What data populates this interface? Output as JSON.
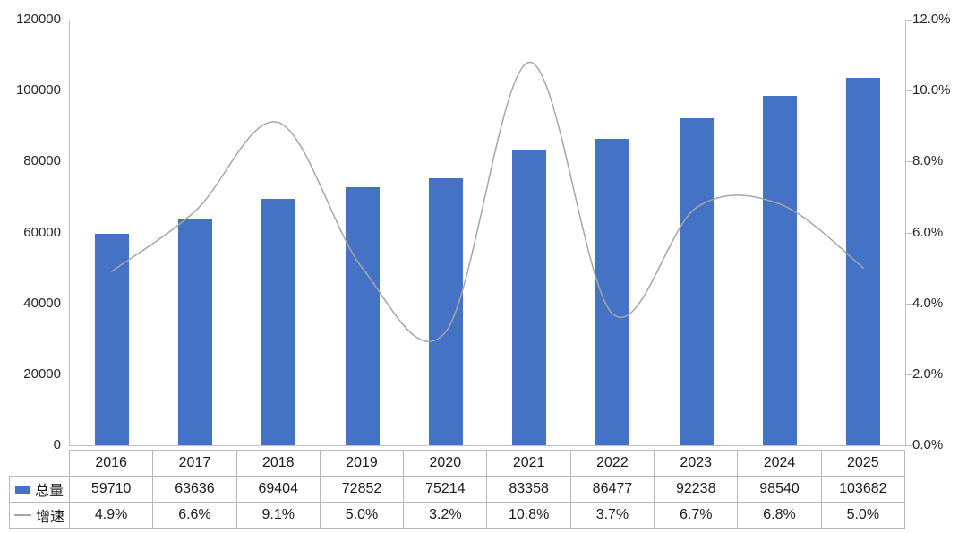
{
  "chart_data": {
    "type": "bar",
    "subtype": "combo-bar-line",
    "title": "",
    "categories": [
      "2016",
      "2017",
      "2018",
      "2019",
      "2020",
      "2021",
      "2022",
      "2023",
      "2024",
      "2025"
    ],
    "series": [
      {
        "name": "总量",
        "type": "bar",
        "axis": "left",
        "values": [
          59710,
          63636,
          69404,
          72852,
          75214,
          83358,
          86477,
          92238,
          98540,
          103682
        ],
        "color": "#4472C4"
      },
      {
        "name": "增速",
        "type": "line",
        "axis": "right",
        "smooth": true,
        "unit": "%",
        "values": [
          4.9,
          6.6,
          9.1,
          5.0,
          3.2,
          10.8,
          3.7,
          6.7,
          6.8,
          5.0
        ],
        "color": "#A6A6A6"
      }
    ],
    "left_axis": {
      "min": 0,
      "max": 120000,
      "tick_labels": [
        "120000",
        "100000",
        "80000",
        "60000",
        "40000",
        "20000",
        "0"
      ]
    },
    "right_axis": {
      "min": 0,
      "max": 12,
      "tick_labels": [
        "12.0%",
        "10.0%",
        "8.0%",
        "6.0%",
        "4.0%",
        "2.0%",
        "0.0%"
      ]
    },
    "grid": false,
    "legend_position": "table-left"
  },
  "table": {
    "header_years": [
      "2016",
      "2017",
      "2018",
      "2019",
      "2020",
      "2021",
      "2022",
      "2023",
      "2024",
      "2025"
    ],
    "rows": [
      {
        "label": "总量",
        "marker": "bar-swatch",
        "marker_color": "#4472C4",
        "values": [
          "59710",
          "63636",
          "69404",
          "72852",
          "75214",
          "83358",
          "86477",
          "92238",
          "98540",
          "103682"
        ]
      },
      {
        "label": "增速",
        "marker": "line-swatch",
        "marker_color": "#A6A6A6",
        "values": [
          "4.9%",
          "6.6%",
          "9.1%",
          "5.0%",
          "3.2%",
          "10.8%",
          "3.7%",
          "6.7%",
          "6.8%",
          "5.0%"
        ]
      }
    ]
  },
  "colors": {
    "bar": "#4472C4",
    "line": "#A6A6A6",
    "axis_line": "#BFBFBF",
    "table_border": "#B8B8B8",
    "text": "#1F1F1F"
  }
}
